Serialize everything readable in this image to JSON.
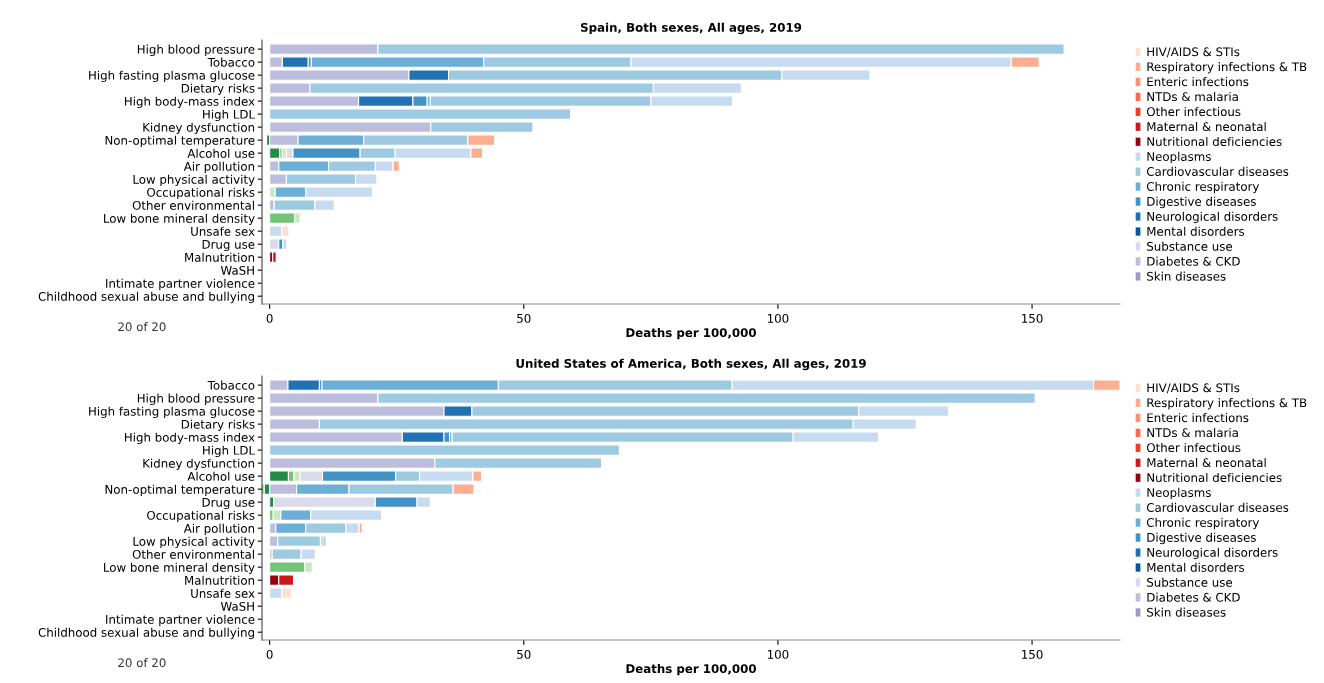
{
  "chart_data": [
    {
      "type": "bar",
      "orientation": "horizontal",
      "stacked": true,
      "title": "Spain, Both sexes, All ages, 2019",
      "xlabel": "Deaths per 100,000",
      "annotations": [
        "20 of 20"
      ],
      "legend": "right",
      "xlim": [
        -1.5,
        167.3
      ],
      "xticks": [
        0,
        50,
        100,
        150
      ],
      "categories": [
        "High blood pressure",
        "Tobacco",
        "High fasting plasma glucose",
        "Dietary risks",
        "High body-mass index",
        "High LDL",
        "Kidney dysfunction",
        "Non-optimal temperature",
        "Alcohol use",
        "Air pollution",
        "Low physical activity",
        "Occupational risks",
        "Other environmental",
        "Low bone mineral density",
        "Unsafe sex",
        "Drug use",
        "Malnutrition",
        "WaSH",
        "Intimate partner violence",
        "Childhood sexual abuse and bullying"
      ],
      "series": [
        {
          "color": "#238b45",
          "values": [
            null,
            null,
            null,
            null,
            null,
            null,
            null,
            -0.6,
            2.0,
            null,
            null,
            null,
            null,
            null,
            null,
            null,
            null,
            null,
            null,
            null
          ]
        },
        {
          "color": "#74c476",
          "values": [
            null,
            null,
            null,
            null,
            null,
            null,
            null,
            null,
            0.5,
            null,
            null,
            null,
            null,
            4.9,
            null,
            null,
            null,
            null,
            null,
            null
          ]
        },
        {
          "color": "#c7e9c0",
          "values": [
            null,
            null,
            null,
            null,
            null,
            null,
            null,
            null,
            0.8,
            null,
            null,
            1.1,
            null,
            1.1,
            null,
            null,
            null,
            null,
            null,
            null
          ]
        },
        {
          "name": "Skin diseases",
          "color": "#9e9ac8",
          "values": [
            null,
            null,
            null,
            null,
            null,
            null,
            null,
            null,
            null,
            null,
            null,
            null,
            null,
            null,
            null,
            null,
            null,
            null,
            null,
            null
          ]
        },
        {
          "name": "Diabetes & CKD",
          "color": "#bcbddc",
          "values": [
            21.3,
            2.5,
            27.4,
            7.9,
            17.5,
            null,
            31.7,
            5.6,
            null,
            1.8,
            3.3,
            null,
            0.9,
            null,
            null,
            null,
            null,
            null,
            null,
            null
          ]
        },
        {
          "name": "Substance use",
          "color": "#dadaeb",
          "values": [
            null,
            null,
            null,
            null,
            null,
            null,
            null,
            null,
            1.3,
            null,
            null,
            null,
            null,
            null,
            null,
            1.8,
            null,
            null,
            null,
            null
          ]
        },
        {
          "name": "Mental disorders",
          "color": "#08519c",
          "values": [
            null,
            null,
            null,
            null,
            null,
            null,
            null,
            null,
            null,
            null,
            null,
            null,
            null,
            null,
            null,
            null,
            null,
            null,
            null,
            null
          ]
        },
        {
          "name": "Neurological disorders",
          "color": "#2171b5",
          "values": [
            null,
            5.1,
            7.8,
            null,
            10.7,
            null,
            null,
            null,
            null,
            null,
            null,
            null,
            null,
            null,
            null,
            null,
            null,
            null,
            null,
            null
          ]
        },
        {
          "name": "Digestive diseases",
          "color": "#4292c6",
          "values": [
            null,
            0.6,
            null,
            null,
            2.8,
            null,
            null,
            null,
            13.2,
            null,
            null,
            null,
            null,
            null,
            null,
            0.8,
            null,
            null,
            null,
            null
          ]
        },
        {
          "name": "Chronic respiratory",
          "color": "#6baed6",
          "values": [
            null,
            33.9,
            null,
            null,
            0.6,
            null,
            null,
            12.9,
            null,
            9.8,
            null,
            6.0,
            null,
            null,
            null,
            null,
            null,
            null,
            null,
            null
          ]
        },
        {
          "name": "Cardiovascular diseases",
          "color": "#9ecae1",
          "values": [
            135.0,
            29.0,
            65.6,
            67.6,
            43.4,
            59.2,
            20.1,
            20.5,
            6.9,
            9.2,
            13.6,
            null,
            8.0,
            null,
            null,
            null,
            null,
            null,
            null,
            null
          ]
        },
        {
          "name": "Neoplasms",
          "color": "#c6dbef",
          "values": [
            null,
            74.8,
            17.3,
            17.3,
            16.1,
            null,
            null,
            null,
            14.9,
            3.5,
            4.2,
            13.1,
            3.8,
            null,
            2.4,
            0.8,
            null,
            null,
            null,
            null
          ]
        },
        {
          "name": "Nutritional deficiencies",
          "color": "#99000d",
          "values": [
            null,
            null,
            null,
            null,
            null,
            null,
            null,
            null,
            null,
            null,
            null,
            null,
            null,
            null,
            null,
            null,
            0.6,
            null,
            null,
            null
          ]
        },
        {
          "name": "Maternal & neonatal",
          "color": "#cb181d",
          "values": [
            null,
            null,
            null,
            null,
            null,
            null,
            null,
            null,
            null,
            null,
            null,
            null,
            null,
            null,
            null,
            null,
            0.7,
            null,
            null,
            null
          ]
        },
        {
          "name": "Other infectious",
          "color": "#ef3b2c",
          "values": [
            null,
            null,
            null,
            null,
            null,
            null,
            null,
            null,
            null,
            null,
            null,
            null,
            null,
            null,
            null,
            null,
            null,
            null,
            null,
            null
          ]
        },
        {
          "name": "NTDs & malaria",
          "color": "#fb6a4a",
          "values": [
            null,
            null,
            null,
            null,
            null,
            null,
            null,
            null,
            null,
            null,
            null,
            null,
            null,
            null,
            null,
            null,
            null,
            null,
            null,
            null
          ]
        },
        {
          "name": "Enteric infections",
          "color": "#fc9272",
          "values": [
            null,
            null,
            null,
            null,
            null,
            null,
            null,
            null,
            null,
            null,
            null,
            null,
            null,
            null,
            null,
            null,
            null,
            null,
            null,
            null
          ]
        },
        {
          "name": "Respiratory infections & TB",
          "color": "#fcae91",
          "values": [
            null,
            5.5,
            null,
            null,
            null,
            null,
            null,
            5.3,
            2.3,
            1.2,
            null,
            null,
            null,
            null,
            null,
            null,
            null,
            null,
            null,
            null
          ]
        },
        {
          "name": "HIV/AIDS & STIs",
          "color": "#fee0d2",
          "values": [
            null,
            null,
            null,
            null,
            null,
            null,
            null,
            null,
            null,
            null,
            null,
            null,
            null,
            null,
            1.4,
            null,
            null,
            null,
            null,
            null
          ]
        }
      ]
    },
    {
      "type": "bar",
      "orientation": "horizontal",
      "stacked": true,
      "title": "United States of America, Both sexes, All ages, 2019",
      "xlabel": "Deaths per 100,000",
      "annotations": [
        "20 of 20"
      ],
      "legend": "right",
      "xlim": [
        -1.5,
        167.3
      ],
      "xticks": [
        0,
        50,
        100,
        150
      ],
      "categories": [
        "Tobacco",
        "High blood pressure",
        "High fasting plasma glucose",
        "Dietary risks",
        "High body-mass index",
        "High LDL",
        "Kidney dysfunction",
        "Alcohol use",
        "Non-optimal temperature",
        "Drug use",
        "Occupational risks",
        "Air pollution",
        "Low physical activity",
        "Other environmental",
        "Low bone mineral density",
        "Malnutrition",
        "Unsafe sex",
        "WaSH",
        "Intimate partner violence",
        "Childhood sexual abuse and bullying"
      ],
      "series": [
        {
          "color": "#238b45",
          "values": [
            null,
            null,
            null,
            null,
            null,
            null,
            null,
            3.7,
            -1.1,
            0.8,
            null,
            null,
            null,
            null,
            null,
            null,
            null,
            null,
            null,
            null
          ]
        },
        {
          "color": "#74c476",
          "values": [
            null,
            null,
            null,
            null,
            null,
            null,
            null,
            1.1,
            -0.5,
            null,
            0.7,
            null,
            null,
            null,
            6.9,
            null,
            null,
            null,
            null,
            null
          ]
        },
        {
          "color": "#c7e9c0",
          "values": [
            null,
            null,
            null,
            null,
            null,
            null,
            null,
            1.2,
            null,
            null,
            1.5,
            null,
            null,
            null,
            1.5,
            null,
            null,
            null,
            null,
            null
          ]
        },
        {
          "name": "Skin diseases",
          "color": "#9e9ac8",
          "values": [
            null,
            null,
            null,
            null,
            null,
            null,
            null,
            null,
            null,
            null,
            null,
            null,
            null,
            null,
            null,
            null,
            null,
            null,
            null,
            null
          ]
        },
        {
          "name": "Diabetes & CKD",
          "color": "#bcbddc",
          "values": [
            3.6,
            21.3,
            34.3,
            9.8,
            26.1,
            null,
            32.5,
            null,
            5.3,
            null,
            null,
            1.2,
            1.6,
            0.5,
            null,
            null,
            null,
            null,
            null,
            null
          ]
        },
        {
          "name": "Substance use",
          "color": "#dadaeb",
          "values": [
            null,
            null,
            null,
            null,
            null,
            null,
            null,
            4.4,
            null,
            20.0,
            null,
            null,
            null,
            null,
            null,
            null,
            null,
            null,
            null,
            null
          ]
        },
        {
          "name": "Mental disorders",
          "color": "#08519c",
          "values": [
            null,
            null,
            null,
            null,
            null,
            null,
            null,
            null,
            null,
            null,
            null,
            null,
            null,
            null,
            null,
            null,
            null,
            null,
            null,
            null
          ]
        },
        {
          "name": "Neurological disorders",
          "color": "#2171b5",
          "values": [
            6.2,
            null,
            5.5,
            null,
            8.2,
            null,
            null,
            null,
            null,
            null,
            null,
            null,
            null,
            null,
            null,
            null,
            null,
            null,
            null,
            null
          ]
        },
        {
          "name": "Digestive diseases",
          "color": "#4292c6",
          "values": [
            0.5,
            null,
            null,
            null,
            1.1,
            null,
            null,
            14.4,
            null,
            8.2,
            null,
            null,
            null,
            null,
            null,
            null,
            null,
            null,
            null,
            null
          ]
        },
        {
          "name": "Chronic respiratory",
          "color": "#6baed6",
          "values": [
            34.7,
            null,
            null,
            null,
            0.5,
            null,
            null,
            null,
            10.3,
            null,
            5.9,
            5.9,
            null,
            null,
            null,
            null,
            null,
            null,
            null,
            null
          ]
        },
        {
          "name": "Cardiovascular diseases",
          "color": "#9ecae1",
          "values": [
            46.0,
            129.3,
            76.1,
            105.0,
            67.1,
            68.8,
            32.8,
            4.7,
            20.5,
            null,
            null,
            7.9,
            8.4,
            5.7,
            null,
            null,
            null,
            null,
            null,
            null
          ]
        },
        {
          "name": "Neoplasms",
          "color": "#c6dbef",
          "values": [
            71.1,
            null,
            17.7,
            12.4,
            16.8,
            null,
            null,
            10.5,
            null,
            2.6,
            13.9,
            2.6,
            1.2,
            2.8,
            null,
            null,
            2.4,
            null,
            null,
            null
          ]
        },
        {
          "name": "Nutritional deficiencies",
          "color": "#99000d",
          "values": [
            null,
            null,
            null,
            null,
            null,
            null,
            null,
            null,
            null,
            null,
            null,
            null,
            null,
            null,
            null,
            1.8,
            null,
            null,
            null,
            null
          ]
        },
        {
          "name": "Maternal & neonatal",
          "color": "#cb181d",
          "values": [
            null,
            null,
            null,
            null,
            null,
            null,
            null,
            null,
            null,
            null,
            null,
            null,
            null,
            null,
            null,
            2.9,
            null,
            null,
            null,
            null
          ]
        },
        {
          "name": "Other infectious",
          "color": "#ef3b2c",
          "values": [
            null,
            null,
            null,
            null,
            null,
            null,
            null,
            null,
            null,
            null,
            null,
            null,
            null,
            null,
            null,
            null,
            null,
            null,
            null,
            null
          ]
        },
        {
          "name": "NTDs & malaria",
          "color": "#fb6a4a",
          "values": [
            null,
            null,
            null,
            null,
            null,
            null,
            null,
            null,
            null,
            null,
            null,
            null,
            null,
            null,
            null,
            null,
            null,
            null,
            null,
            null
          ]
        },
        {
          "name": "Enteric infections",
          "color": "#fc9272",
          "values": [
            null,
            null,
            null,
            null,
            null,
            null,
            null,
            null,
            null,
            null,
            null,
            null,
            null,
            null,
            null,
            null,
            null,
            null,
            null,
            null
          ]
        },
        {
          "name": "Respiratory infections & TB",
          "color": "#fcae91",
          "values": [
            5.2,
            null,
            null,
            null,
            null,
            null,
            null,
            1.7,
            4.1,
            null,
            null,
            0.6,
            null,
            null,
            null,
            null,
            null,
            null,
            null,
            null
          ]
        },
        {
          "name": "HIV/AIDS & STIs",
          "color": "#fee0d2",
          "values": [
            null,
            null,
            null,
            null,
            null,
            null,
            null,
            null,
            null,
            null,
            null,
            null,
            null,
            null,
            null,
            null,
            1.9,
            null,
            null,
            null
          ]
        }
      ]
    }
  ]
}
